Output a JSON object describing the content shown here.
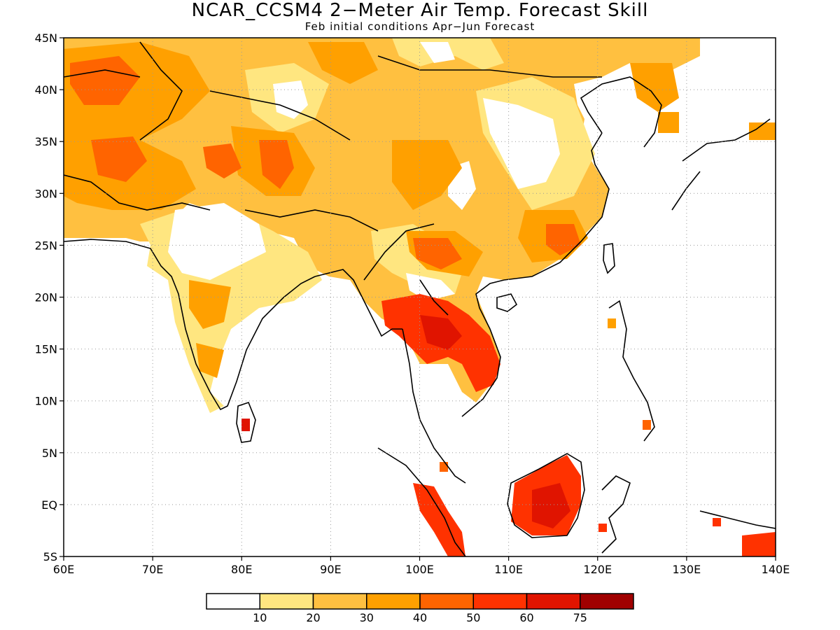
{
  "title": "NCAR_CCSM4 2−Meter Air Temp. Forecast Skill",
  "subtitle": "Feb initial conditions  Apr−Jun Forecast",
  "map": {
    "lon_range": [
      60,
      140
    ],
    "lat_range": [
      -5,
      45
    ],
    "lon_ticks": [
      {
        "value": 60,
        "label": "60E"
      },
      {
        "value": 70,
        "label": "70E"
      },
      {
        "value": 80,
        "label": "80E"
      },
      {
        "value": 90,
        "label": "90E"
      },
      {
        "value": 100,
        "label": "100E"
      },
      {
        "value": 110,
        "label": "110E"
      },
      {
        "value": 120,
        "label": "120E"
      },
      {
        "value": 130,
        "label": "130E"
      },
      {
        "value": 140,
        "label": "140E"
      }
    ],
    "lat_ticks": [
      {
        "value": 45,
        "label": "45N"
      },
      {
        "value": 40,
        "label": "40N"
      },
      {
        "value": 35,
        "label": "35N"
      },
      {
        "value": 30,
        "label": "30N"
      },
      {
        "value": 25,
        "label": "25N"
      },
      {
        "value": 20,
        "label": "20N"
      },
      {
        "value": 15,
        "label": "15N"
      },
      {
        "value": 10,
        "label": "10N"
      },
      {
        "value": 5,
        "label": "5N"
      },
      {
        "value": 0,
        "label": "EQ"
      },
      {
        "value": -5,
        "label": "5S"
      }
    ],
    "grid": "dotted"
  },
  "legend": {
    "colors": [
      "#ffffff",
      "#ffe680",
      "#ffc040",
      "#ffa000",
      "#ff6400",
      "#ff3200",
      "#e01400",
      "#a00000"
    ],
    "labels": [
      "10",
      "20",
      "30",
      "40",
      "50",
      "60",
      "75"
    ]
  }
}
